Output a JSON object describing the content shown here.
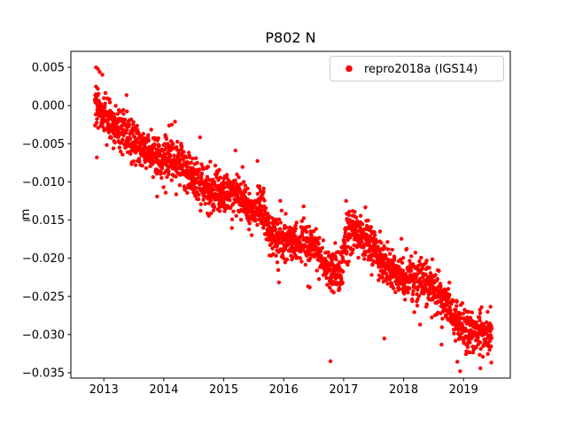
{
  "figure": {
    "background": "#ffffff"
  },
  "chart_data": {
    "type": "scatter",
    "title": "P802 N",
    "xlabel": "",
    "ylabel": "m",
    "grid": false,
    "xlim": [
      2012.45,
      2019.78
    ],
    "ylim": [
      -0.0357,
      0.0071
    ],
    "x_ticks": [
      2013,
      2014,
      2015,
      2016,
      2017,
      2018,
      2019
    ],
    "x_tick_labels": [
      "2013",
      "2014",
      "2015",
      "2016",
      "2017",
      "2018",
      "2019"
    ],
    "y_ticks": [
      0.005,
      0.0,
      -0.005,
      -0.01,
      -0.015,
      -0.02,
      -0.025,
      -0.03,
      -0.035
    ],
    "y_tick_labels": [
      "0.005",
      "0.000",
      "−0.005",
      "−0.010",
      "−0.015",
      "−0.020",
      "−0.025",
      "−0.030",
      "−0.035"
    ],
    "legend": {
      "label": "repro2018a (IGS14)",
      "marker_color": "#ff0000",
      "position": "upper right"
    },
    "series": [
      {
        "name": "repro2018a (IGS14)",
        "color": "#ff0000",
        "marker": "dot",
        "marker_radius_px": 2.2,
        "n_points": 2400,
        "x_start": 2012.85,
        "x_end": 2019.47,
        "trend_points": [
          [
            2012.85,
            0.0005
          ],
          [
            2013.0,
            -0.0005
          ],
          [
            2013.2,
            -0.0035
          ],
          [
            2013.5,
            -0.005
          ],
          [
            2013.8,
            -0.0055
          ],
          [
            2014.0,
            -0.0065
          ],
          [
            2014.3,
            -0.0085
          ],
          [
            2014.5,
            -0.01
          ],
          [
            2014.8,
            -0.0105
          ],
          [
            2015.0,
            -0.011
          ],
          [
            2015.25,
            -0.0125
          ],
          [
            2015.45,
            -0.0145
          ],
          [
            2015.6,
            -0.013
          ],
          [
            2015.8,
            -0.016
          ],
          [
            2016.0,
            -0.0175
          ],
          [
            2016.2,
            -0.018
          ],
          [
            2016.5,
            -0.019
          ],
          [
            2016.7,
            -0.0205
          ],
          [
            2016.95,
            -0.0215
          ],
          [
            2017.02,
            -0.017
          ],
          [
            2017.1,
            -0.0165
          ],
          [
            2017.3,
            -0.018
          ],
          [
            2017.5,
            -0.019
          ],
          [
            2017.7,
            -0.0205
          ],
          [
            2018.0,
            -0.022
          ],
          [
            2018.3,
            -0.0235
          ],
          [
            2018.5,
            -0.024
          ],
          [
            2018.8,
            -0.0265
          ],
          [
            2019.0,
            -0.029
          ],
          [
            2019.2,
            -0.03
          ],
          [
            2019.35,
            -0.0305
          ],
          [
            2019.47,
            -0.031
          ]
        ],
        "noise_sigma": 0.0013,
        "wide_noise_sigma": 0.0028,
        "wide_fraction": 0.08,
        "seasonal_amplitude": 0.0007,
        "outliers": [
          [
            2016.78,
            -0.0335
          ],
          [
            2012.87,
            0.005
          ],
          [
            2012.9,
            0.0048
          ],
          [
            2012.93,
            0.0044
          ]
        ],
        "seed": 42
      }
    ]
  }
}
